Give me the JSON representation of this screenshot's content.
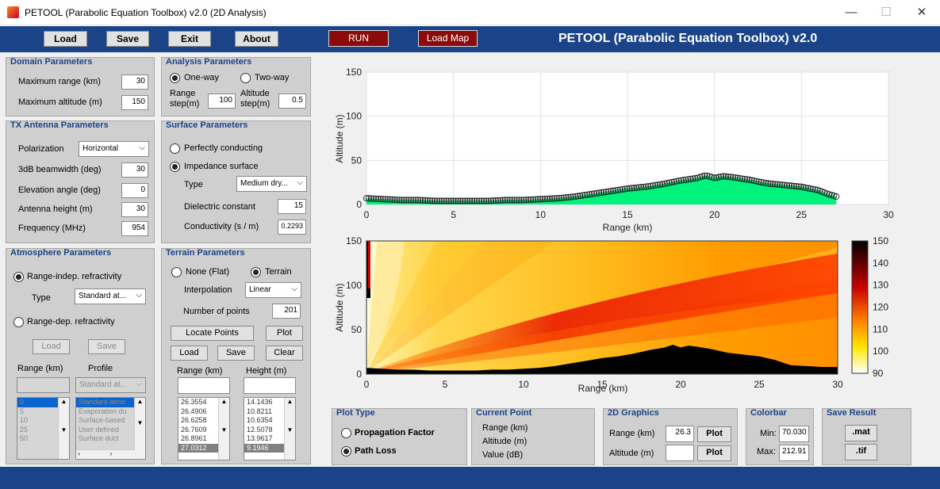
{
  "window": {
    "title": "PETOOL (Parabolic Equation Toolbox) v2.0 (2D Analysis)",
    "minimize_glyph": "—",
    "maximize_glyph": "☐",
    "close_glyph": "✕"
  },
  "toolbar": {
    "load": "Load",
    "save": "Save",
    "exit": "Exit",
    "about": "About",
    "run": "RUN",
    "load_map": "Load Map",
    "app_title": "PETOOL (Parabolic Equation Toolbox) v2.0"
  },
  "domain": {
    "title": "Domain Parameters",
    "max_range_label": "Maximum range (km)",
    "max_range": "30",
    "max_alt_label": "Maximum altitude (m)",
    "max_alt": "150"
  },
  "analysis": {
    "title": "Analysis Parameters",
    "one_way": "One-way",
    "two_way": "Two-way",
    "range_step_label": "Range step(m)",
    "range_step": "100",
    "alt_step_label": "Altitude step(m)",
    "alt_step": "0.5"
  },
  "tx": {
    "title": "TX Antenna Parameters",
    "polarization_label": "Polarization",
    "polarization": "Horizontal",
    "beamwidth_label": "3dB beamwidth (deg)",
    "beamwidth": "30",
    "elevation_label": "Elevation angle (deg)",
    "elevation": "0",
    "height_label": "Antenna height (m)",
    "height": "30",
    "frequency_label": "Frequency (MHz)",
    "frequency": "954"
  },
  "surface": {
    "title": "Surface Parameters",
    "perfect": "Perfectly conducting",
    "impedance": "Impedance surface",
    "type_label": "Type",
    "type": "Medium dry...",
    "dielectric_label": "Dielectric constant",
    "dielectric": "15",
    "conductivity_label": "Conductivity (s / m)",
    "conductivity": "0.2293"
  },
  "atmosphere": {
    "title": "Atmosphere Parameters",
    "range_indep": "Range-indep. refractivity",
    "type_label": "Type",
    "type": "Standard at...",
    "range_dep": "Range-dep. refractivity",
    "load": "Load",
    "save": "Save",
    "range_col": "Range (km)",
    "profile_col": "Profile",
    "profile_select": "Standard at...",
    "ranges": [
      "0",
      "5",
      "10",
      "25",
      "50"
    ],
    "profiles": [
      "Standard atmo",
      "Evaporation du",
      "Surface-based",
      "User defined",
      "Surface duct"
    ]
  },
  "terrain": {
    "title": "Terrain Parameters",
    "none_flat": "None (Flat)",
    "terrain": "Terrain",
    "interp_label": "Interpolation",
    "interp": "Linear",
    "npoints_label": "Number of points",
    "npoints": "201",
    "locate": "Locate Points",
    "plot": "Plot",
    "load": "Load",
    "save": "Save",
    "clear": "Clear",
    "range_col": "Range (km)",
    "height_col": "Height (m)",
    "ranges": [
      "26.3554",
      "26.4906",
      "26.6258",
      "26.7609",
      "26.8961",
      "27.0312"
    ],
    "heights": [
      "14.1436",
      "10.8211",
      "10.6354",
      "12.5078",
      "13.9617",
      "9.1946"
    ]
  },
  "plot_type": {
    "title": "Plot Type",
    "propagation": "Propagation Factor",
    "path_loss": "Path Loss"
  },
  "current_point": {
    "title": "Current Point",
    "range": "Range (km)",
    "altitude": "Altitude (m)",
    "value": "Value (dB)"
  },
  "graphics2d": {
    "title": "2D Graphics",
    "range_label": "Range (km)",
    "range_value": "26.3",
    "plot": "Plot",
    "alt_label": "Altitude (m)",
    "alt_value": "",
    "plot2": "Plot"
  },
  "colorbar": {
    "title": "Colorbar",
    "min_label": "Min:",
    "min": "70.030",
    "max_label": "Max:",
    "max": "212.91"
  },
  "save_result": {
    "title": "Save Result",
    "mat": ".mat",
    "tif": ".tif"
  },
  "chart_data": [
    {
      "type": "area",
      "title": "",
      "xlabel": "Range (km)",
      "ylabel": "Altitude (m)",
      "xlim": [
        0,
        30
      ],
      "ylim": [
        0,
        150
      ],
      "xticks": [
        "0",
        "5",
        "10",
        "15",
        "20",
        "25",
        "30"
      ],
      "yticks": [
        "0",
        "50",
        "100",
        "150"
      ],
      "grid": true,
      "fill_color": "#00f27d",
      "x": [
        0,
        1,
        2,
        3,
        4,
        5,
        6,
        7,
        8,
        9,
        10,
        11,
        12,
        13,
        14,
        15,
        16,
        17,
        18,
        19,
        19.5,
        20,
        20.5,
        21,
        22,
        23,
        24,
        25,
        26,
        26.5,
        27
      ],
      "y": [
        7,
        6,
        5,
        5,
        4,
        4,
        4,
        4,
        5,
        5,
        6,
        7,
        9,
        12,
        15,
        18,
        20,
        23,
        27,
        30,
        33,
        30,
        32,
        31,
        28,
        24,
        22,
        20,
        16,
        12,
        9
      ]
    },
    {
      "type": "heatmap",
      "title": "",
      "xlabel": "Range (km)",
      "ylabel": "Altitude (m)",
      "xlim": [
        0,
        30
      ],
      "ylim": [
        0,
        150
      ],
      "xticks": [
        "0",
        "5",
        "10",
        "15",
        "20",
        "25",
        "30"
      ],
      "yticks": [
        "0",
        "50",
        "100",
        "150"
      ],
      "colormap": "hot (reversed)",
      "colorbar_ticks": [
        "150",
        "140",
        "130",
        "120",
        "110",
        "100",
        "90"
      ],
      "colorbar_range": [
        90,
        150
      ],
      "terrain_x": [
        0,
        1,
        2,
        3,
        4,
        5,
        6,
        7,
        8,
        9,
        10,
        11,
        12,
        13,
        14,
        15,
        16,
        17,
        18,
        19,
        19.5,
        20,
        20.5,
        21,
        22,
        23,
        24,
        25,
        26,
        27,
        28,
        29,
        30
      ],
      "terrain_y": [
        7,
        6,
        5,
        5,
        4,
        4,
        4,
        4,
        5,
        5,
        6,
        7,
        9,
        12,
        15,
        18,
        20,
        23,
        27,
        30,
        33,
        30,
        32,
        31,
        28,
        24,
        22,
        20,
        16,
        10,
        9,
        8,
        8
      ]
    }
  ]
}
